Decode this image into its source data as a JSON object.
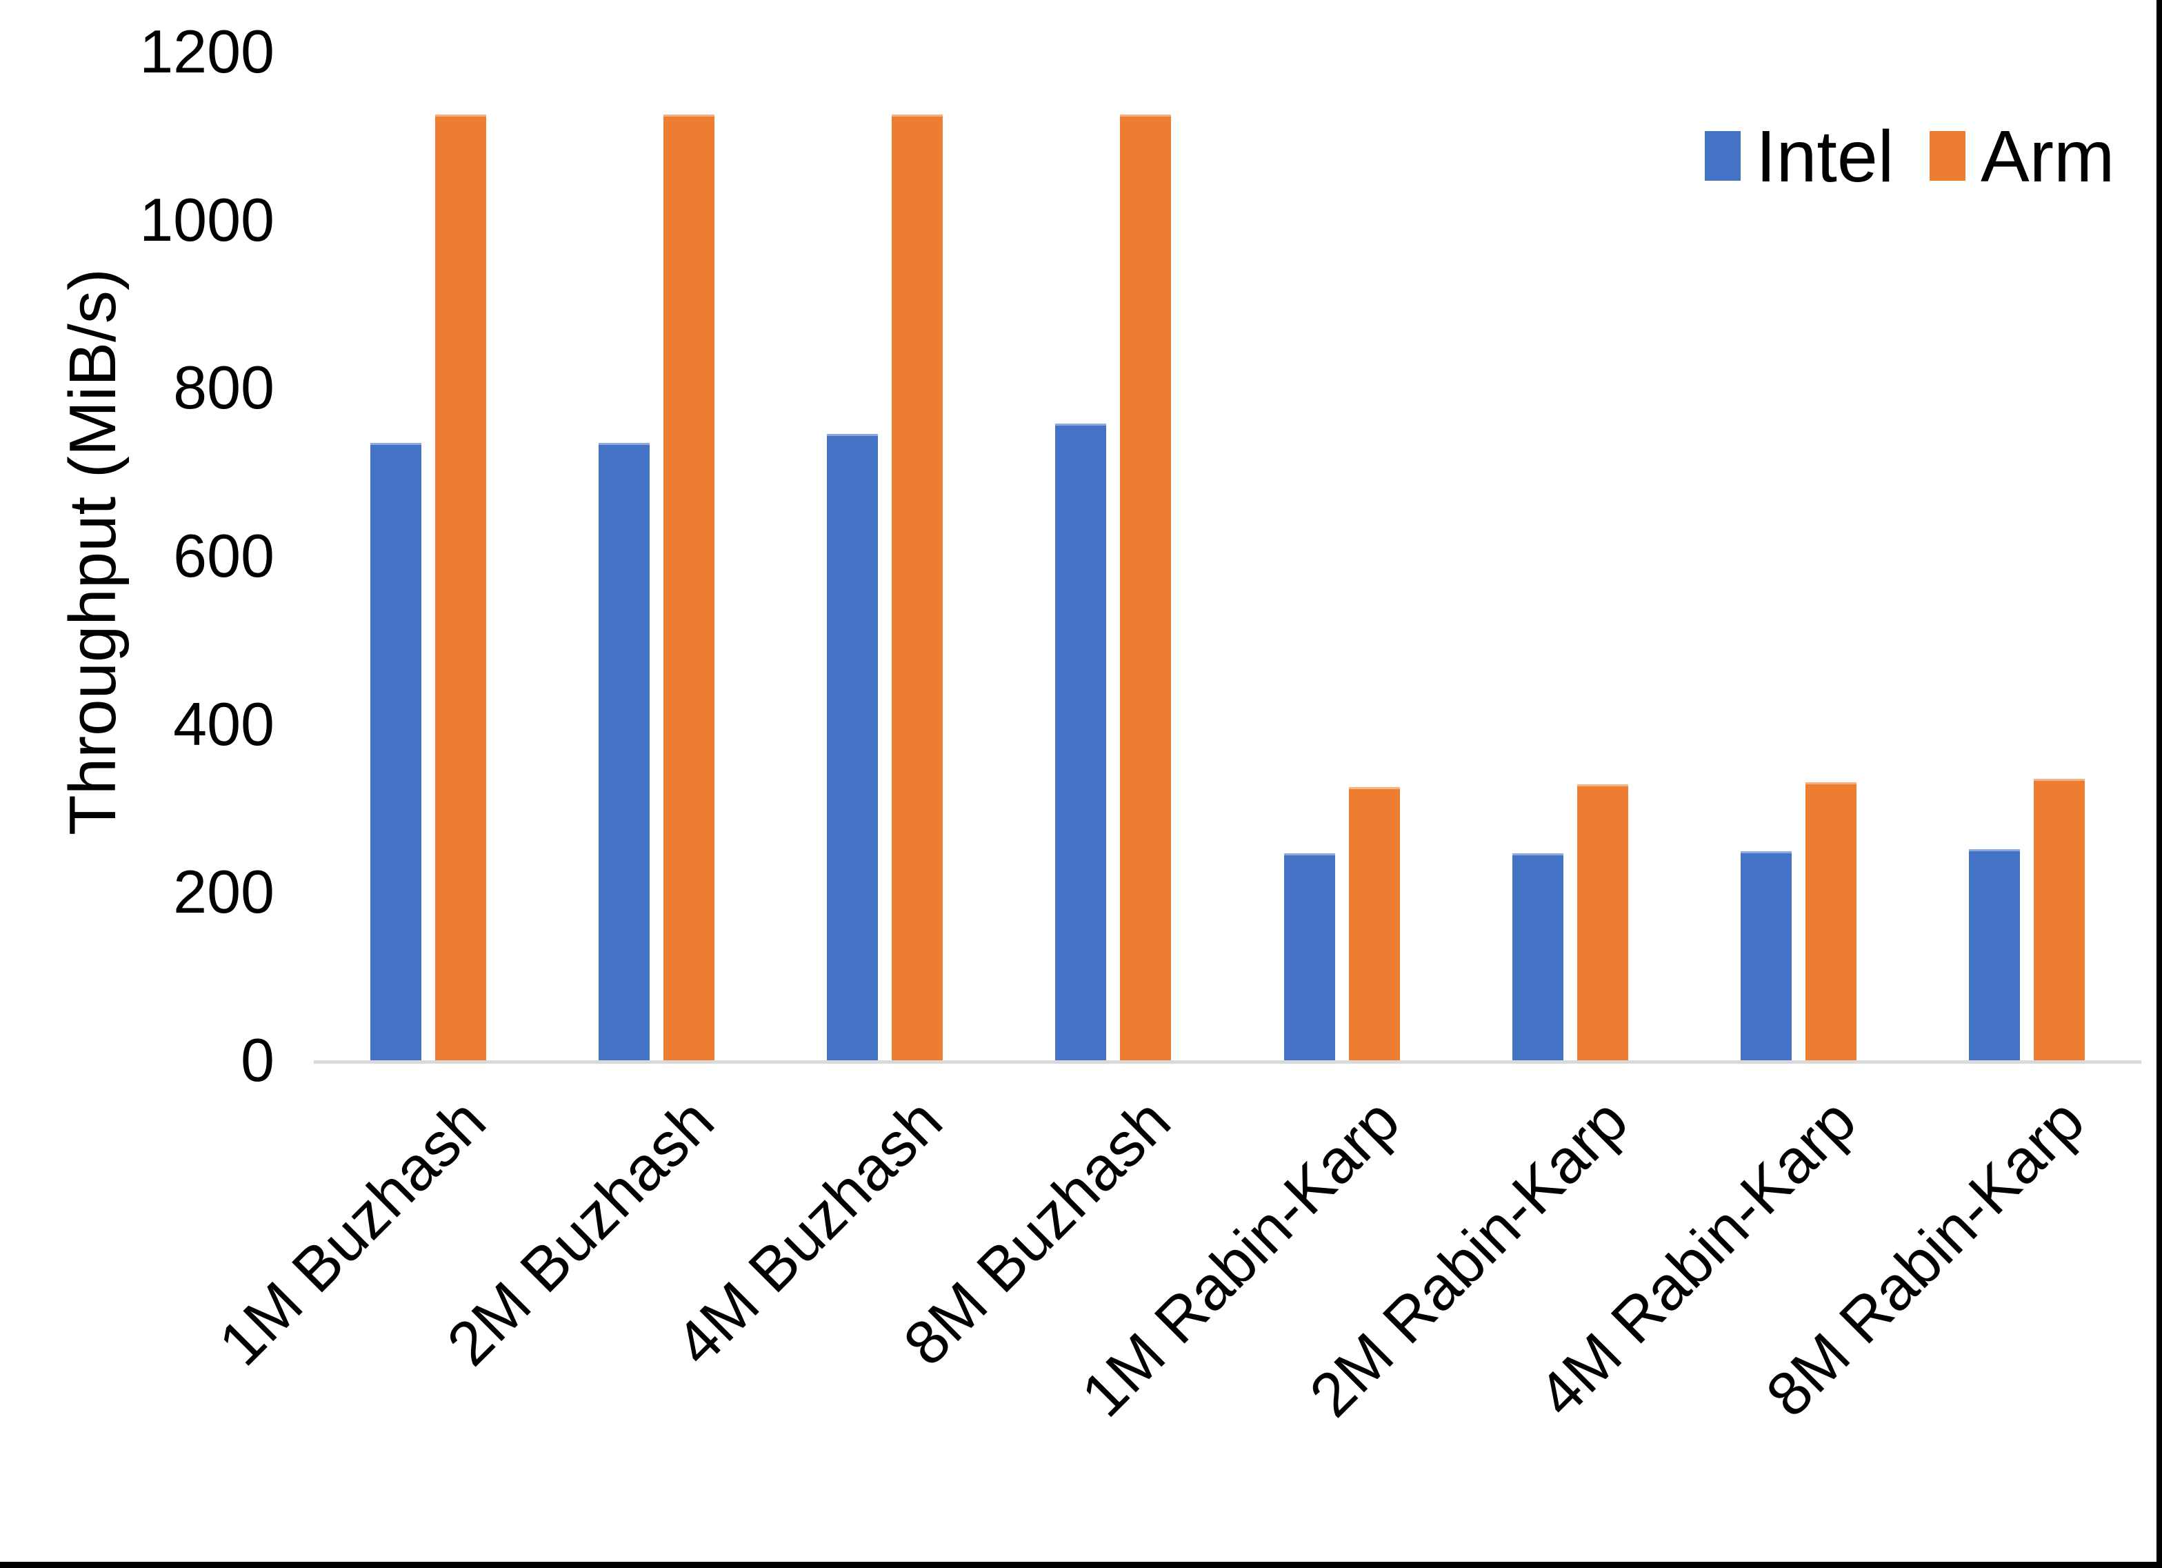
{
  "chart_data": {
    "type": "bar",
    "title": "",
    "xlabel": "",
    "ylabel": "Throughput (MiB/s)",
    "ylim": [
      0,
      1200
    ],
    "yticks": [
      0,
      200,
      400,
      600,
      800,
      1000,
      1200
    ],
    "grid": false,
    "legend_position": "top-right",
    "categories": [
      "1M Buzhash",
      "2M Buzhash",
      "4M Buzhash",
      "8M Buzhash",
      "1M Rabin-Karp",
      "2M Rabin-Karp",
      "4M Rabin-Karp",
      "8M Rabin-Karp"
    ],
    "series": [
      {
        "name": "Intel",
        "color": "#4472C4",
        "cap_color": "#8EA9DB",
        "values": [
          735,
          735,
          745,
          758,
          246,
          246,
          249,
          251
        ]
      },
      {
        "name": "Arm",
        "color": "#ED7D31",
        "cap_color": "#F4B183",
        "values": [
          1125,
          1125,
          1125,
          1125,
          325,
          328,
          331,
          335
        ]
      }
    ]
  },
  "colors": {
    "axis_line": "#D9D9D9",
    "text": "#000000",
    "frame_border": "#000000",
    "background": "#FFFFFF"
  }
}
